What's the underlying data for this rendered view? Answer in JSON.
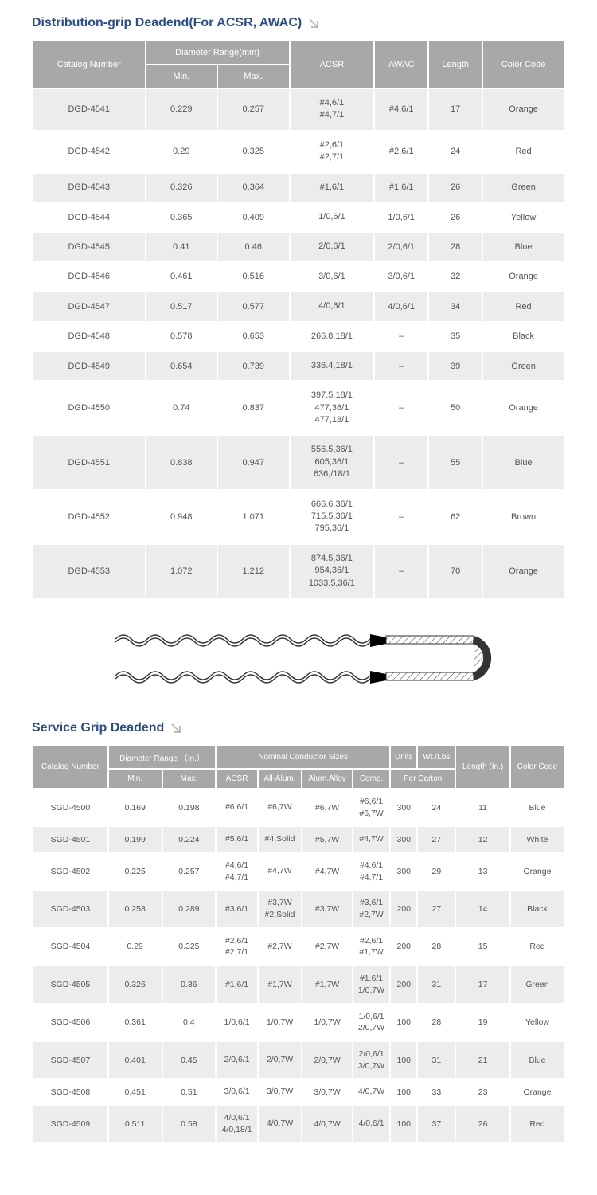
{
  "section1": {
    "title": "Distribution-grip Deadend(For ACSR, AWAC)",
    "headers": {
      "catalog": "Catalog Number",
      "diameter": "Diameter Range(mm)",
      "min": "Min.",
      "max": "Max.",
      "acsr": "ACSR",
      "awac": "AWAC",
      "length": "Length",
      "color": "Color Code"
    },
    "rows": [
      {
        "cat": "DGD-4541",
        "min": "0.229",
        "max": "0.257",
        "acsr": "#4,6/1\n#4,7/1",
        "awac": "#4,6/1",
        "len": "17",
        "color": "Orange",
        "alt": true
      },
      {
        "cat": "DGD-4542",
        "min": "0.29",
        "max": "0.325",
        "acsr": "#2,6/1\n#2,7/1",
        "awac": "#2,6/1",
        "len": "24",
        "color": "Red",
        "alt": false
      },
      {
        "cat": "DGD-4543",
        "min": "0.326",
        "max": "0.364",
        "acsr": "#1,6/1",
        "awac": "#1,6/1",
        "len": "26",
        "color": "Green",
        "alt": true
      },
      {
        "cat": "DGD-4544",
        "min": "0.365",
        "max": "0.409",
        "acsr": "1/0,6/1",
        "awac": "1/0,6/1",
        "len": "26",
        "color": "Yellow",
        "alt": false
      },
      {
        "cat": "DGD-4545",
        "min": "0.41",
        "max": "0.46",
        "acsr": "2/0,6/1",
        "awac": "2/0,6/1",
        "len": "28",
        "color": "Blue",
        "alt": true
      },
      {
        "cat": "DGD-4546",
        "min": "0.461",
        "max": "0.516",
        "acsr": "3/0,6/1",
        "awac": "3/0,6/1",
        "len": "32",
        "color": "Orange",
        "alt": false
      },
      {
        "cat": "DGD-4547",
        "min": "0.517",
        "max": "0.577",
        "acsr": "4/0,6/1",
        "awac": "4/0,6/1",
        "len": "34",
        "color": "Red",
        "alt": true
      },
      {
        "cat": "DGD-4548",
        "min": "0.578",
        "max": "0.653",
        "acsr": "266.8,18/1",
        "awac": "–",
        "len": "35",
        "color": "Black",
        "alt": false
      },
      {
        "cat": "DGD-4549",
        "min": "0.654",
        "max": "0.739",
        "acsr": "336.4,18/1",
        "awac": "–",
        "len": "39",
        "color": "Green",
        "alt": true
      },
      {
        "cat": "DGD-4550",
        "min": "0.74",
        "max": "0.837",
        "acsr": "397.5,18/1\n477,36/1\n477,18/1",
        "awac": "–",
        "len": "50",
        "color": "Orange",
        "alt": false
      },
      {
        "cat": "DGD-4551",
        "min": "0.838",
        "max": "0.947",
        "acsr": "556.5,36/1\n605,36/1\n636,/18/1",
        "awac": "–",
        "len": "55",
        "color": "Blue",
        "alt": true
      },
      {
        "cat": "DGD-4552",
        "min": "0.948",
        "max": "1.071",
        "acsr": "666.6,36/1\n715.5,36/1\n795,36/1",
        "awac": "–",
        "len": "62",
        "color": "Brown",
        "alt": false
      },
      {
        "cat": "DGD-4553",
        "min": "1.072",
        "max": "1.212",
        "acsr": "874.5,36/1\n954,36/1\n1033.5,36/1",
        "awac": "–",
        "len": "70",
        "color": "Orange",
        "alt": true
      }
    ]
  },
  "section2": {
    "title": "Service Grip Deadend",
    "headers": {
      "catalog": "Catalog Number",
      "diameter": "Diameter Range （In.）",
      "min": "Min.",
      "max": "Max.",
      "nominal": "Nominal Conductor Sizes",
      "acsr": "ACSR",
      "allalum": "All-Alum.",
      "alumalloy": "Alum.Alloy",
      "comp": "Comp.",
      "units": "Units",
      "wtlbs": "Wt./Lbs",
      "percarton": "Per Carton",
      "length": "Length (In.)",
      "color": "Color Code"
    },
    "rows": [
      {
        "cat": "SGD-4500",
        "min": "0.169",
        "max": "0.198",
        "acsr": "#6,6/1",
        "aa": "#6,7W",
        "al": "#6,7W",
        "comp": "#6,6/1\n#6,7W",
        "units": "300",
        "wt": "24",
        "len": "11",
        "color": "Blue",
        "alt": false
      },
      {
        "cat": "SGD-4501",
        "min": "0.199",
        "max": "0.224",
        "acsr": "#5,6/1",
        "aa": "#4,Solid",
        "al": "#5,7W",
        "comp": "#4,7W",
        "units": "300",
        "wt": "27",
        "len": "12",
        "color": "White",
        "alt": true
      },
      {
        "cat": "SGD-4502",
        "min": "0.225",
        "max": "0.257",
        "acsr": "#4,6/1\n#4,7/1",
        "aa": "#4,7W",
        "al": "#4,7W",
        "comp": "#4,6/1\n#4,7/1",
        "units": "300",
        "wt": "29",
        "len": "13",
        "color": "Orange",
        "alt": false
      },
      {
        "cat": "SGD-4503",
        "min": "0.258",
        "max": "0.289",
        "acsr": "#3,6/1",
        "aa": "#3,7W\n#2,Solid",
        "al": "#3,7W",
        "comp": "#3,6/1\n#2,7W",
        "units": "200",
        "wt": "27",
        "len": "14",
        "color": "Black",
        "alt": true
      },
      {
        "cat": "SGD-4504",
        "min": "0.29",
        "max": "0.325",
        "acsr": "#2,6/1\n#2,7/1",
        "aa": "#2,7W",
        "al": "#2,7W",
        "comp": "#2,6/1\n#1,7W",
        "units": "200",
        "wt": "28",
        "len": "15",
        "color": "Red",
        "alt": false
      },
      {
        "cat": "SGD-4505",
        "min": "0.326",
        "max": "0.36",
        "acsr": "#1,6/1",
        "aa": "#1,7W",
        "al": "#1,7W",
        "comp": "#1,6/1\n1/0,7W",
        "units": "200",
        "wt": "31",
        "len": "17",
        "color": "Green",
        "alt": true
      },
      {
        "cat": "SGD-4506",
        "min": "0.361",
        "max": "0.4",
        "acsr": "1/0,6/1",
        "aa": "1/0,7W",
        "al": "1/0,7W",
        "comp": "1/0,6/1\n2/0,7W",
        "units": "100",
        "wt": "28",
        "len": "19",
        "color": "Yellow",
        "alt": false
      },
      {
        "cat": "SGD-4507",
        "min": "0.401",
        "max": "0.45",
        "acsr": "2/0,6/1",
        "aa": "2/0,7W",
        "al": "2/0,7W",
        "comp": "2/0,6/1\n3/0,7W",
        "units": "100",
        "wt": "31",
        "len": "21",
        "color": "Blue",
        "alt": true
      },
      {
        "cat": "SGD-4508",
        "min": "0.451",
        "max": "0.51",
        "acsr": "3/0,6/1",
        "aa": "3/0,7W",
        "al": "3/0,7W",
        "comp": "4/0,7W",
        "units": "100",
        "wt": "33",
        "len": "23",
        "color": "Orange",
        "alt": false
      },
      {
        "cat": "SGD-4509",
        "min": "0.511",
        "max": "0.58",
        "acsr": "4/0,6/1\n4/0,18/1",
        "aa": "4/0,7W",
        "al": "4/0,7W",
        "comp": "4/0,6/1",
        "units": "100",
        "wt": "37",
        "len": "26",
        "color": "Red",
        "alt": true
      }
    ]
  },
  "colors": {
    "title": "#2a4d8f",
    "headerBg": "#a8a8a8",
    "altRow": "#ececec",
    "text": "#555555"
  }
}
